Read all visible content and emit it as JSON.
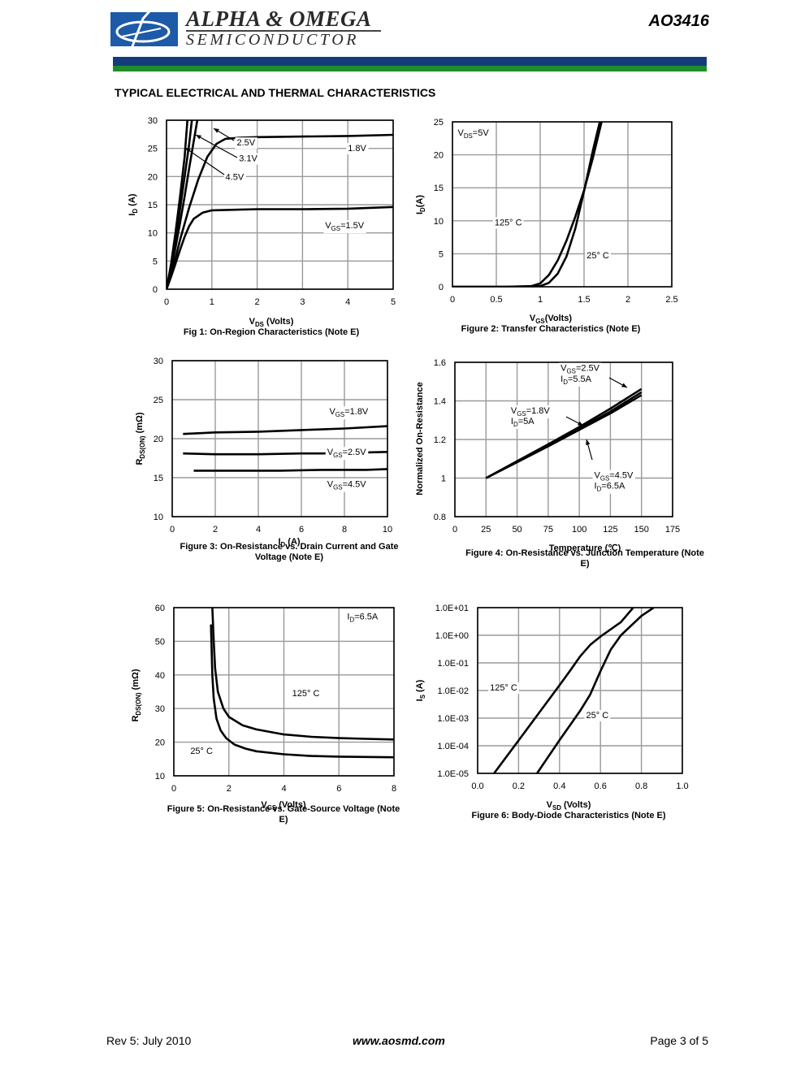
{
  "header": {
    "brand_line1": "ALPHA & OMEGA",
    "brand_line2": "SEMICONDUCTOR",
    "part_number": "AO3416",
    "colors": {
      "logo": "#1d5aa7",
      "band_blue": "#143c7a",
      "band_green": "#1e8c2a"
    }
  },
  "section_title": "TYPICAL ELECTRICAL AND THERMAL CHARACTERISTICS",
  "footer": {
    "revision": "Rev 5: July 2010",
    "url": "www.aosmd.com",
    "page": "Page 3 of 5"
  },
  "chart_data": [
    {
      "id": "fig1",
      "type": "line",
      "caption": "Fig 1: On-Region Characteristics (Note E)",
      "xlabel": "V<sub>DS</sub> (Volts)",
      "ylabel": "I<sub>D</sub> (A)",
      "xlim": [
        0,
        5
      ],
      "ylim": [
        0,
        30
      ],
      "xticks": [
        "0",
        "1",
        "2",
        "3",
        "4",
        "5"
      ],
      "yticks": [
        "0",
        "5",
        "10",
        "15",
        "20",
        "25",
        "30"
      ],
      "grid": true,
      "series": [
        {
          "name": "1.5V",
          "x": [
            0,
            0.1,
            0.2,
            0.3,
            0.4,
            0.5,
            0.6,
            0.8,
            1.0,
            1.5,
            2.0,
            3.0,
            4.0,
            5.0
          ],
          "y": [
            0,
            2.2,
            4.6,
            7.0,
            9.3,
            11.2,
            12.5,
            13.6,
            14.0,
            14.1,
            14.2,
            14.2,
            14.3,
            14.6
          ]
        },
        {
          "name": "1.8V",
          "x": [
            0,
            0.1,
            0.2,
            0.3,
            0.5,
            0.7,
            0.9,
            1.1,
            1.3,
            1.6,
            2.0,
            3.0,
            4.0,
            5.0
          ],
          "y": [
            0,
            2.6,
            5.6,
            8.8,
            14.5,
            19.5,
            23.5,
            25.8,
            26.7,
            26.9,
            27.0,
            27.1,
            27.2,
            27.4
          ]
        },
        {
          "name": "2.5V",
          "x": [
            0,
            0.1,
            0.2,
            0.3,
            0.4,
            0.5,
            0.6,
            0.68
          ],
          "y": [
            0,
            3.5,
            7.5,
            11.8,
            16.5,
            21.5,
            26.3,
            30
          ]
        },
        {
          "name": "3.1V",
          "x": [
            0,
            0.1,
            0.2,
            0.3,
            0.4,
            0.5,
            0.56
          ],
          "y": [
            0,
            4.0,
            8.8,
            14.3,
            20.0,
            25.8,
            30
          ]
        },
        {
          "name": "4.5V",
          "x": [
            0,
            0.1,
            0.2,
            0.3,
            0.4,
            0.46
          ],
          "y": [
            0,
            4.5,
            10.2,
            16.5,
            23.5,
            30
          ]
        }
      ],
      "annotations": [
        {
          "text": "2.5V",
          "x": 1.55,
          "y": 25.5
        },
        {
          "text": "3.1V",
          "x": 1.6,
          "y": 22.7
        },
        {
          "text": "4.5V",
          "x": 1.3,
          "y": 19.4
        },
        {
          "text": "1.8V",
          "x": 4.0,
          "y": 24.5
        },
        {
          "text": "V<sub>GS</sub>=1.5V",
          "x": 3.5,
          "y": 10.8
        }
      ]
    },
    {
      "id": "fig2",
      "type": "line",
      "caption": "Figure 2: Transfer Characteristics (Note E)",
      "xlabel": "V<sub>GS</sub>(Volts)",
      "ylabel": "I<sub>D</sub>(A)",
      "xlim": [
        0,
        2.5
      ],
      "ylim": [
        0,
        25
      ],
      "xticks": [
        "0",
        "0.5",
        "1",
        "1.5",
        "2",
        "2.5"
      ],
      "yticks": [
        "0",
        "5",
        "10",
        "15",
        "20",
        "25"
      ],
      "grid": true,
      "series": [
        {
          "name": "125° C",
          "x": [
            0,
            0.6,
            0.9,
            1.0,
            1.1,
            1.2,
            1.3,
            1.4,
            1.5,
            1.6,
            1.7
          ],
          "y": [
            0,
            0,
            0.1,
            0.5,
            1.8,
            4.0,
            7.0,
            10.6,
            14.6,
            19.5,
            25
          ]
        },
        {
          "name": "25° C",
          "x": [
            0,
            0.8,
            1.0,
            1.1,
            1.2,
            1.3,
            1.4,
            1.5,
            1.6,
            1.68
          ],
          "y": [
            0,
            0,
            0.1,
            0.6,
            2.0,
            4.6,
            8.8,
            14.5,
            20.6,
            25
          ]
        }
      ],
      "annotations": [
        {
          "text": "V<sub>DS</sub>=5V",
          "x": 0.06,
          "y": 22.9
        },
        {
          "text": "125° C",
          "x": 0.48,
          "y": 9.3
        },
        {
          "text": "25° C",
          "x": 1.53,
          "y": 4.3
        }
      ]
    },
    {
      "id": "fig3",
      "type": "line",
      "caption": "Figure 3: On-Resistance vs. Drain Current and Gate Voltage (Note E)",
      "xlabel": "I<sub>D</sub> (A)",
      "ylabel": "R<sub>DS(ON)</sub> (mΩ)",
      "xlim": [
        0,
        10
      ],
      "ylim": [
        10,
        30
      ],
      "xticks": [
        "0",
        "2",
        "4",
        "6",
        "8",
        "10"
      ],
      "yticks": [
        "10",
        "15",
        "20",
        "25",
        "30"
      ],
      "grid": true,
      "series": [
        {
          "name": "V<sub>GS</sub>=1.8V",
          "x": [
            0.5,
            2,
            4,
            6,
            8,
            10
          ],
          "y": [
            20.6,
            20.8,
            20.9,
            21.1,
            21.3,
            21.6
          ]
        },
        {
          "name": "V<sub>GS</sub>=2.5V",
          "x": [
            0.5,
            2,
            4,
            6,
            7,
            10
          ],
          "y": [
            18.1,
            18.0,
            18.0,
            18.1,
            18.1,
            18.3
          ]
        },
        {
          "name": "V<sub>GS</sub>=4.5V",
          "x": [
            1,
            3,
            5,
            7,
            9,
            10
          ],
          "y": [
            15.9,
            15.9,
            15.9,
            16.0,
            16.0,
            16.1
          ]
        }
      ],
      "annotations": [
        {
          "text": "V<sub>GS</sub>=1.8V",
          "x": 7.3,
          "y": 23.1
        },
        {
          "text": "V<sub>GS</sub>=2.5V",
          "x": 7.2,
          "y": 17.9
        },
        {
          "text": "V<sub>GS</sub>=4.5V",
          "x": 7.2,
          "y": 13.8
        }
      ]
    },
    {
      "id": "fig4",
      "type": "line",
      "caption": "Figure 4: On-Resistance vs. Junction Temperature (Note E)",
      "xlabel": "Temperature (℃)",
      "ylabel": "Normalized On-Resistance",
      "xlim": [
        0,
        175
      ],
      "ylim": [
        0.8,
        1.6
      ],
      "xticks": [
        "0",
        "25",
        "50",
        "75",
        "100",
        "125",
        "150",
        "175"
      ],
      "yticks": [
        "0.8",
        "1",
        "1.2",
        "1.4",
        "1.6"
      ],
      "grid": true,
      "series": [
        {
          "name": "V<sub>GS</sub>=2.5V",
          "x": [
            25,
            50,
            75,
            100,
            125,
            150
          ],
          "y": [
            1.0,
            1.085,
            1.17,
            1.255,
            1.345,
            1.445
          ]
        },
        {
          "name": "V<sub>GS</sub>=1.8V",
          "x": [
            25,
            50,
            75,
            100,
            125,
            150
          ],
          "y": [
            1.0,
            1.088,
            1.175,
            1.265,
            1.36,
            1.462
          ]
        },
        {
          "name": "V<sub>GS</sub>=4.5V",
          "x": [
            25,
            50,
            75,
            100,
            125,
            150
          ],
          "y": [
            1.0,
            1.082,
            1.165,
            1.25,
            1.335,
            1.43
          ]
        }
      ],
      "annotations": [
        {
          "text": "V<sub>GS</sub>=2.5V",
          "x": 85,
          "y": 1.555
        },
        {
          "text": "I<sub>D</sub>=5.5A",
          "x": 85,
          "y": 1.5
        },
        {
          "text": "V<sub>GS</sub>=1.8V",
          "x": 45,
          "y": 1.335
        },
        {
          "text": "I<sub>D</sub>=5A",
          "x": 45,
          "y": 1.28
        },
        {
          "text": "V<sub>GS</sub>=4.5V",
          "x": 112,
          "y": 1.0
        },
        {
          "text": "I<sub>D</sub>=6.5A",
          "x": 112,
          "y": 0.945
        }
      ]
    },
    {
      "id": "fig5",
      "type": "line",
      "caption": "Figure 5: On-Resistance vs. Gate-Source Voltage (Note E)",
      "xlabel": "V<sub>GS</sub> (Volts)",
      "ylabel": "R<sub>DS(ON)</sub> (mΩ)",
      "xlim": [
        0,
        8
      ],
      "ylim": [
        10,
        60
      ],
      "xticks": [
        "0",
        "2",
        "4",
        "6",
        "8"
      ],
      "yticks": [
        "10",
        "20",
        "30",
        "40",
        "50",
        "60"
      ],
      "grid": true,
      "series": [
        {
          "name": "125° C",
          "x": [
            1.4,
            1.45,
            1.5,
            1.6,
            1.8,
            2.0,
            2.5,
            3,
            4,
            5,
            6,
            7,
            8
          ],
          "y": [
            60,
            50,
            42,
            35,
            30,
            27.5,
            25,
            23.8,
            22.3,
            21.6,
            21.2,
            21.0,
            20.8
          ]
        },
        {
          "name": "25° C",
          "x": [
            1.35,
            1.4,
            1.45,
            1.55,
            1.7,
            1.9,
            2.2,
            2.6,
            3,
            4,
            5,
            6,
            7,
            8
          ],
          "y": [
            55,
            40,
            33,
            27,
            23.5,
            21.2,
            19.3,
            18.1,
            17.3,
            16.4,
            15.9,
            15.7,
            15.6,
            15.5
          ]
        }
      ],
      "annotations": [
        {
          "text": "I<sub>D</sub>=6.5A",
          "x": 6.3,
          "y": 56.5
        },
        {
          "text": "125° C",
          "x": 4.3,
          "y": 33.7
        },
        {
          "text": "25° C",
          "x": 0.6,
          "y": 16.5
        }
      ]
    },
    {
      "id": "fig6",
      "type": "line",
      "yscale": "log",
      "caption": "Figure 6: Body-Diode Characteristics (Note E)",
      "xlabel": "V<sub>SD</sub> (Volts)",
      "ylabel": "I<sub>S</sub> (A)",
      "xlim": [
        0,
        1.0
      ],
      "ylim": [
        1e-05,
        10
      ],
      "xticks": [
        "0.0",
        "0.2",
        "0.4",
        "0.6",
        "0.8",
        "1.0"
      ],
      "yticks": [
        "1.0E-05",
        "1.0E-04",
        "1.0E-03",
        "1.0E-02",
        "1.0E-01",
        "1.0E+00",
        "1.0E+01"
      ],
      "grid": true,
      "series": [
        {
          "name": "125° C",
          "x": [
            0.08,
            0.2,
            0.3,
            0.4,
            0.45,
            0.5,
            0.55,
            0.6,
            0.7,
            0.76
          ],
          "y": [
            1e-05,
            0.000155,
            0.00155,
            0.0155,
            0.05,
            0.17,
            0.45,
            0.9,
            3.0,
            10
          ]
        },
        {
          "name": "25° C",
          "x": [
            0.29,
            0.4,
            0.5,
            0.55,
            0.6,
            0.65,
            0.7,
            0.8,
            0.86
          ],
          "y": [
            1e-05,
            0.00016,
            0.0018,
            0.0072,
            0.05,
            0.3,
            1.0,
            5.0,
            10
          ]
        }
      ],
      "annotations": [
        {
          "text": "125° C",
          "x": 0.06,
          "y": 0.01
        },
        {
          "text": "25° C",
          "x": 0.53,
          "y": 0.001
        }
      ]
    }
  ]
}
